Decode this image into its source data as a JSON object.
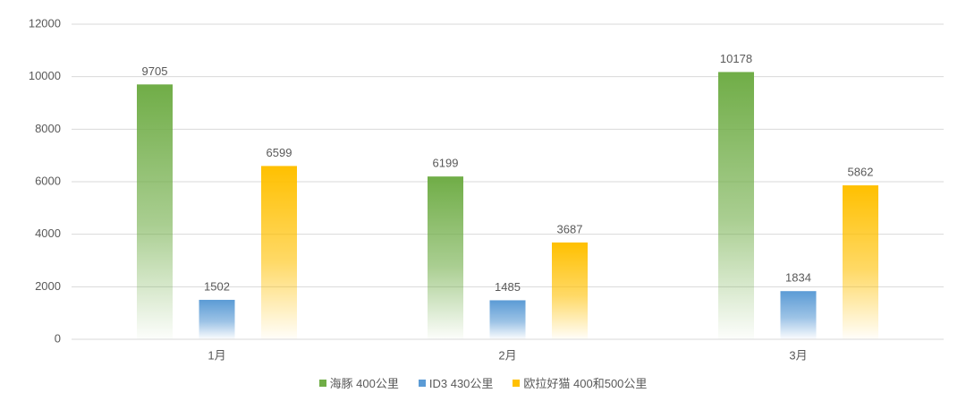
{
  "chart_data": {
    "type": "bar",
    "categories": [
      "1月",
      "2月",
      "3月"
    ],
    "series": [
      {
        "name": "海豚 400公里",
        "color": "#70ad47",
        "values": [
          9705,
          6199,
          10178
        ]
      },
      {
        "name": "ID3 430公里",
        "color": "#5b9bd5",
        "values": [
          1502,
          1485,
          1834
        ]
      },
      {
        "name": "欧拉好猫 400和500公里",
        "color": "#ffc000",
        "values": [
          6599,
          3687,
          5862
        ]
      }
    ],
    "ylim": [
      0,
      12000
    ],
    "yticks": [
      0,
      2000,
      4000,
      6000,
      8000,
      10000,
      12000
    ],
    "grid": true,
    "legend": "bottom"
  }
}
